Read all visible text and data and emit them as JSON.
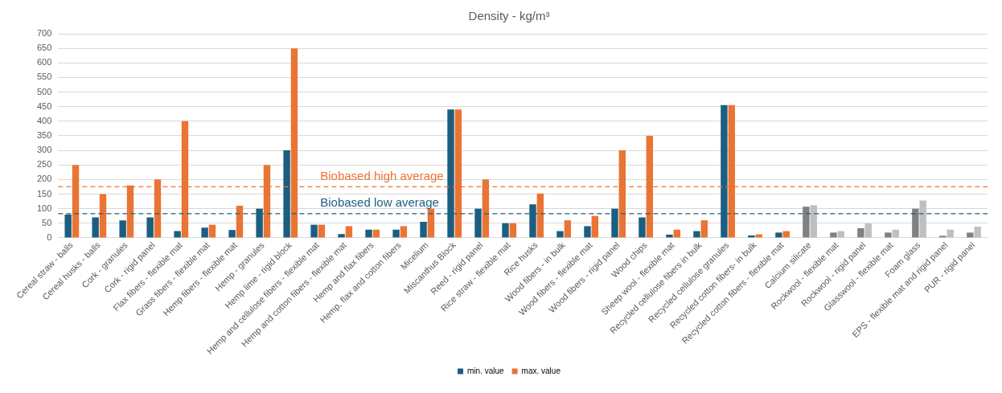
{
  "chart_data": {
    "type": "bar",
    "title": "Density - kg/m³",
    "categories": [
      "Cereal straw - balls",
      "Cereal husks - balls",
      "Cork - granules",
      "Cork - rigid panel",
      "Flax fibers - flexible mat",
      "Grass fibers - flexible mat",
      "Hemp fibers - flexible mat",
      "Hemp - granules",
      "Hemp lime - rigid block",
      "Hemp and cellulose fibers - flexible mat",
      "Hemp and cotton fibers - flexible mat",
      "Hemp and flax fibers",
      "Hemp, flax and cotton fibers",
      "Micelium",
      "Miscanthus Block",
      "Reed - rigid panel",
      "Rice straw - flexible mat",
      "Rice husks",
      "Wood fibers - in bulk",
      "Wood fibers - flexible mat",
      "Wood fibers - rigid panel",
      "Wood chips",
      "Sheep wool - flexible mat",
      "Recycled cellulose fibers in bulk",
      "Recycled cellulose granules",
      "Recycled cotton fibers- in bulk",
      "Recycled cotton fibers - flexible mat",
      "Calcium silicate",
      "Rockwool - flexible mat",
      "Rockwool - rigid panel",
      "Glasswool - flexible mat",
      "Foam glass",
      "EPS - flexible mat and rigid panel",
      "PUR - rigid panel"
    ],
    "series": [
      {
        "name": "min. value",
        "color": "#1b5e80",
        "colors": [
          "#1b5e80",
          "#1b5e80",
          "#1b5e80",
          "#1b5e80",
          "#1b5e80",
          "#1b5e80",
          "#1b5e80",
          "#1b5e80",
          "#1b5e80",
          "#1b5e80",
          "#1b5e80",
          "#1b5e80",
          "#1b5e80",
          "#1b5e80",
          "#1b5e80",
          "#1b5e80",
          "#1b5e80",
          "#1b5e80",
          "#1b5e80",
          "#1b5e80",
          "#1b5e80",
          "#1b5e80",
          "#1b5e80",
          "#1b5e80",
          "#1b5e80",
          "#1b5e80",
          "#1b5e80",
          "#808080",
          "#808080",
          "#808080",
          "#808080",
          "#808080",
          "#808080",
          "#808080"
        ],
        "values": [
          80,
          70,
          60,
          70,
          23,
          35,
          27,
          100,
          300,
          45,
          13,
          28,
          28,
          55,
          440,
          100,
          50,
          115,
          23,
          40,
          100,
          70,
          11,
          23,
          455,
          8,
          18,
          107,
          18,
          33,
          18,
          100,
          7,
          18
        ]
      },
      {
        "name": "max. value",
        "color": "#ea7434",
        "colors": [
          "#ea7434",
          "#ea7434",
          "#ea7434",
          "#ea7434",
          "#ea7434",
          "#ea7434",
          "#ea7434",
          "#ea7434",
          "#ea7434",
          "#ea7434",
          "#ea7434",
          "#ea7434",
          "#ea7434",
          "#ea7434",
          "#ea7434",
          "#ea7434",
          "#ea7434",
          "#ea7434",
          "#ea7434",
          "#ea7434",
          "#ea7434",
          "#ea7434",
          "#ea7434",
          "#ea7434",
          "#ea7434",
          "#ea7434",
          "#ea7434",
          "#bfbfbf",
          "#bfbfbf",
          "#bfbfbf",
          "#bfbfbf",
          "#bfbfbf",
          "#bfbfbf",
          "#bfbfbf"
        ],
        "values": [
          250,
          150,
          180,
          200,
          400,
          45,
          110,
          250,
          650,
          45,
          40,
          28,
          40,
          100,
          440,
          200,
          50,
          152,
          60,
          75,
          300,
          350,
          28,
          60,
          455,
          12,
          23,
          112,
          23,
          49,
          28,
          128,
          28,
          38
        ]
      }
    ],
    "ylim": [
      0,
      700
    ],
    "yticks": [
      0,
      50,
      100,
      150,
      200,
      250,
      300,
      350,
      400,
      450,
      500,
      550,
      600,
      650,
      700
    ],
    "ref_lines": [
      {
        "axis": "y",
        "value": 175,
        "label": "Biobased high average",
        "color": "#ea7434",
        "line_style": "dashed"
      },
      {
        "axis": "y",
        "value": 83,
        "label": "Biobased low average",
        "color": "#1b5e80",
        "line_style": "dashed"
      }
    ],
    "grid": "y",
    "legend": "bottom"
  }
}
